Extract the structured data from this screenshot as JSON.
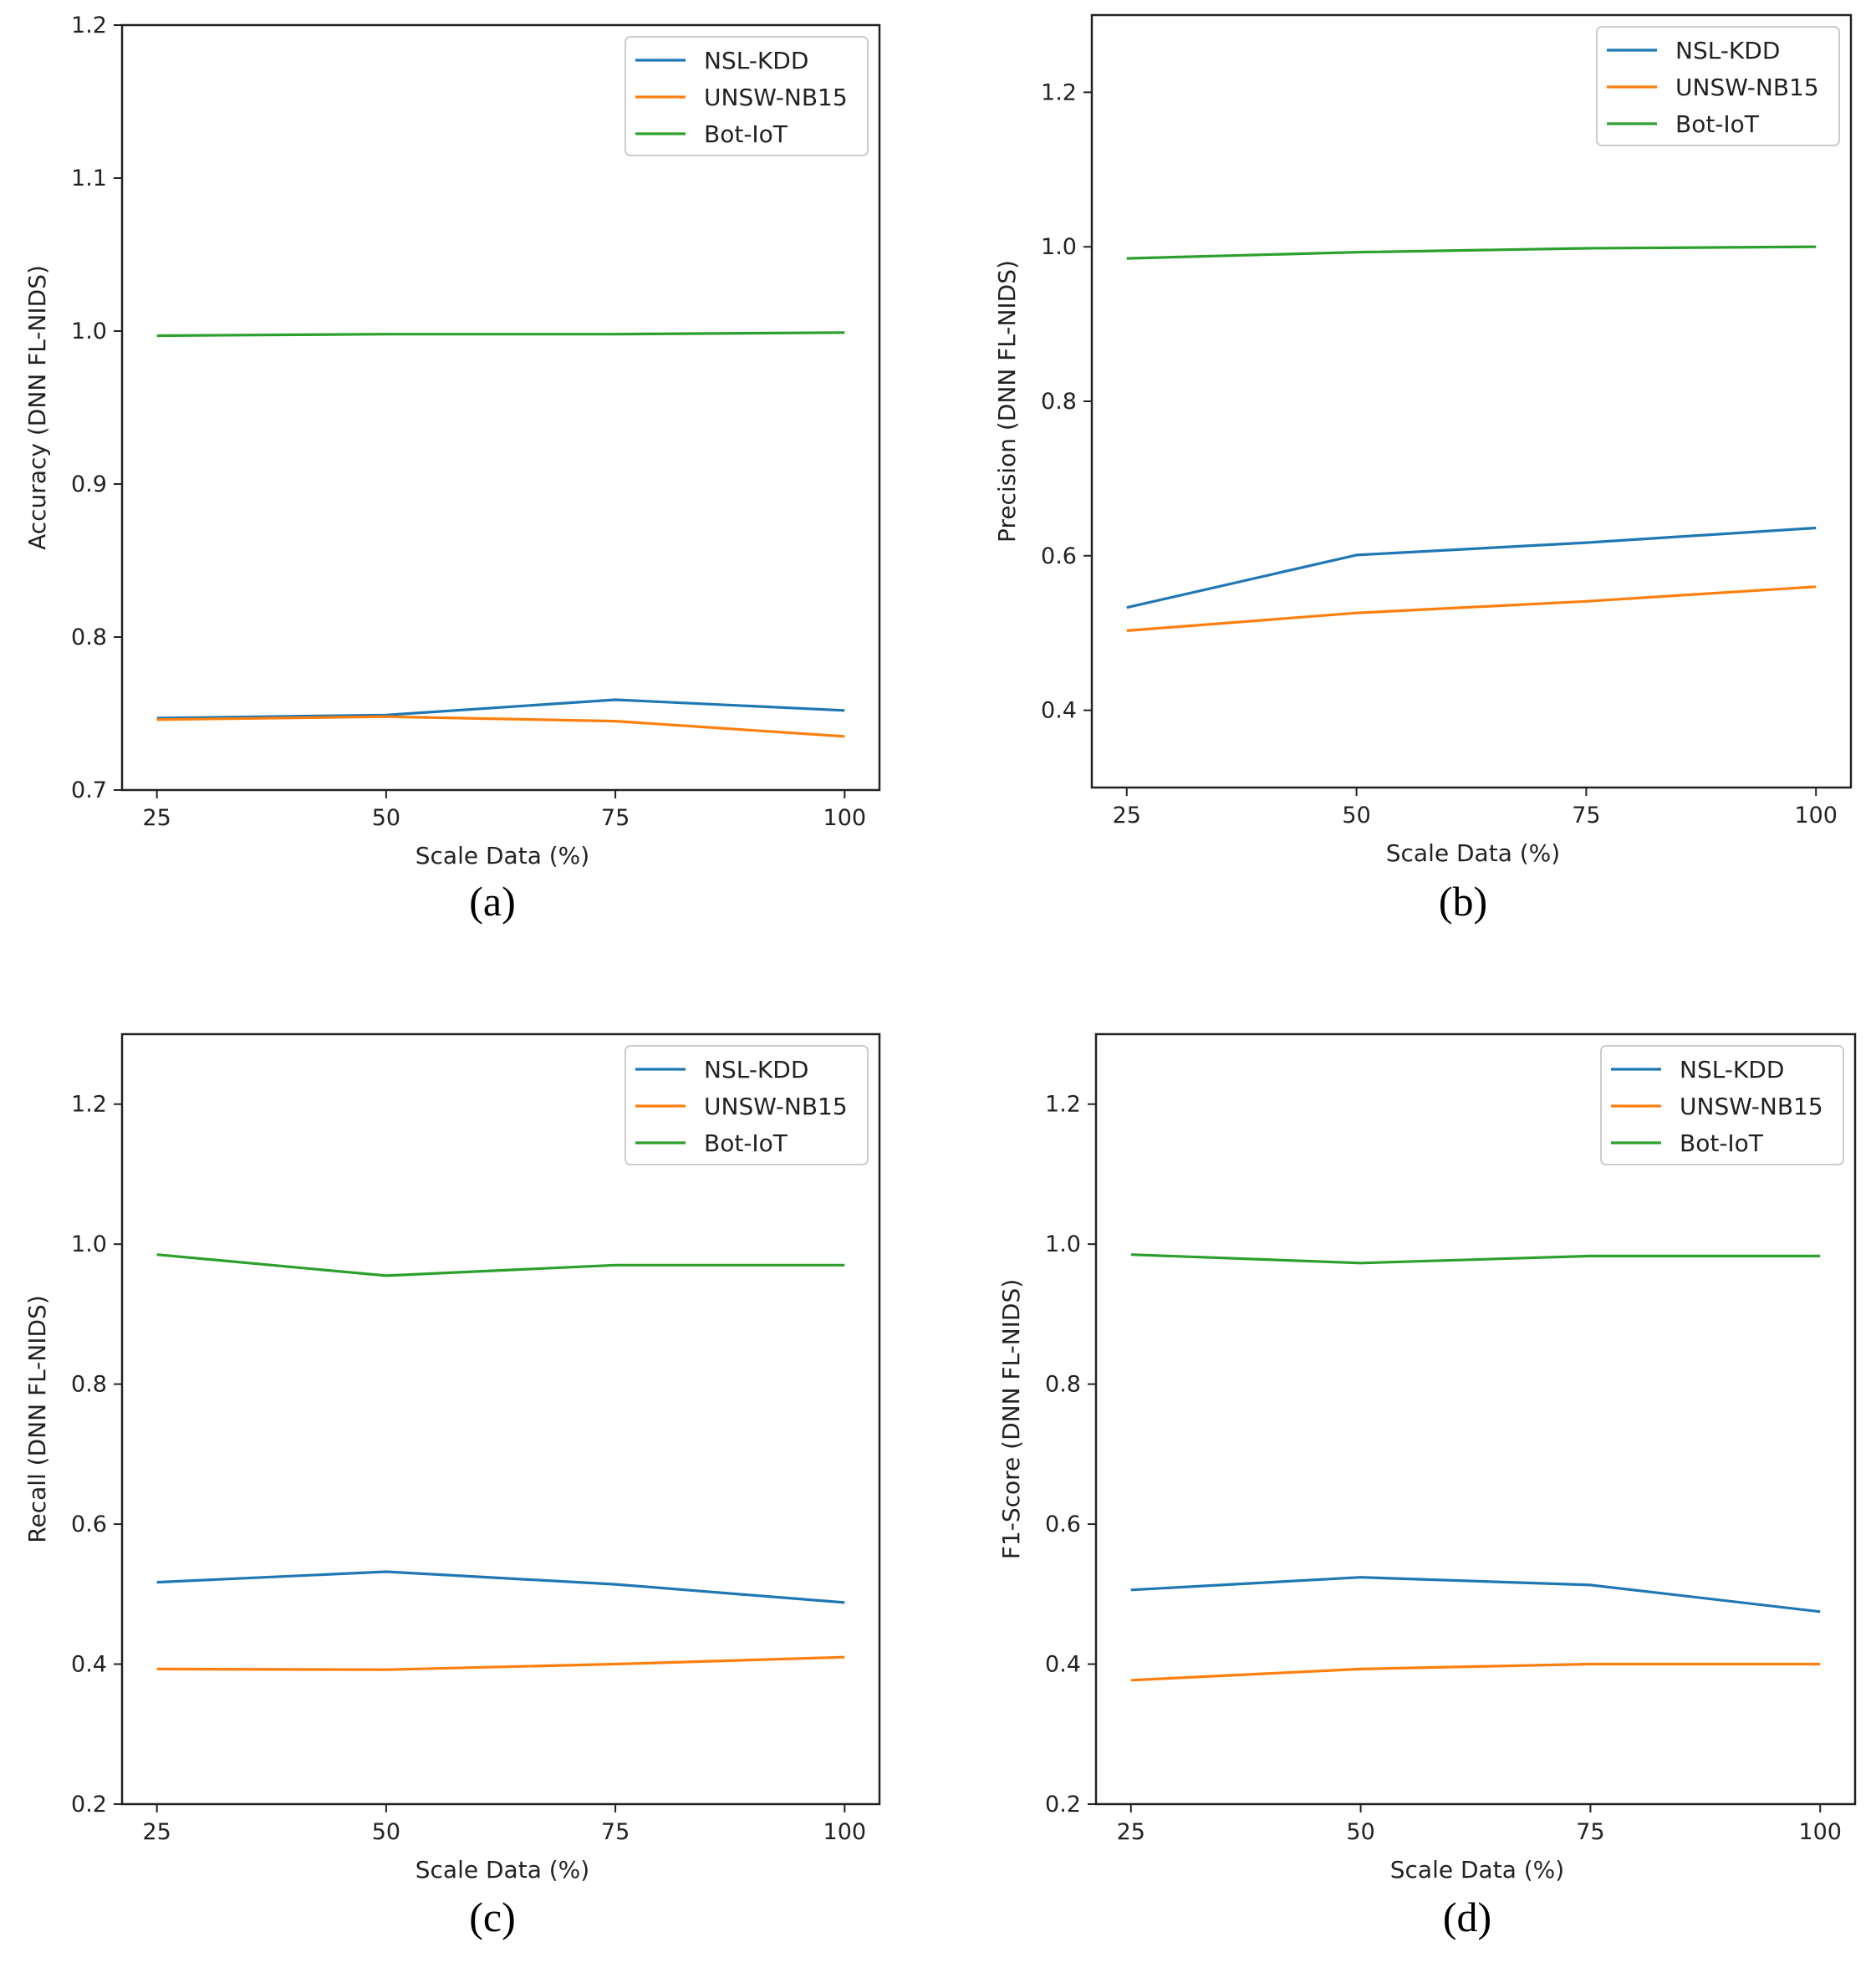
{
  "chart_data": [
    {
      "type": "line",
      "id": "a",
      "caption": "(a)",
      "xlabel": "Scale Data (%)",
      "ylabel": "Accuracy (DNN FL-NIDS)",
      "x": [
        25,
        50,
        75,
        100
      ],
      "xticks": [
        "25",
        "50",
        "75",
        "100"
      ],
      "xlim": [
        21.2,
        103.8
      ],
      "ylim": [
        0.7,
        1.2
      ],
      "yticks": [
        "0.7",
        "0.8",
        "0.9",
        "1.0",
        "1.1",
        "1.2"
      ],
      "legend_position": "top-right",
      "series": [
        {
          "name": "NSL-KDD",
          "color": "#1f77b4",
          "values": [
            0.747,
            0.749,
            0.759,
            0.752
          ]
        },
        {
          "name": "UNSW-NB15",
          "color": "#ff7f0e",
          "values": [
            0.746,
            0.748,
            0.745,
            0.735
          ]
        },
        {
          "name": "Bot-IoT",
          "color": "#2ca02c",
          "values": [
            0.997,
            0.998,
            0.998,
            0.999
          ]
        }
      ]
    },
    {
      "type": "line",
      "id": "b",
      "caption": "(b)",
      "xlabel": "Scale Data (%)",
      "ylabel": "Precision (DNN FL-NIDS)",
      "x": [
        25,
        50,
        75,
        100
      ],
      "xticks": [
        "25",
        "50",
        "75",
        "100"
      ],
      "xlim": [
        21.2,
        103.8
      ],
      "ylim": [
        0.3,
        1.3
      ],
      "yticks": [
        "0.4",
        "0.6",
        "0.8",
        "1.0",
        "1.2"
      ],
      "legend_position": "top-right",
      "series": [
        {
          "name": "NSL-KDD",
          "color": "#1f77b4",
          "values": [
            0.533,
            0.601,
            0.617,
            0.636
          ]
        },
        {
          "name": "UNSW-NB15",
          "color": "#ff7f0e",
          "values": [
            0.503,
            0.526,
            0.541,
            0.56
          ]
        },
        {
          "name": "Bot-IoT",
          "color": "#2ca02c",
          "values": [
            0.985,
            0.993,
            0.998,
            1.0
          ]
        }
      ]
    },
    {
      "type": "line",
      "id": "c",
      "caption": "(c)",
      "xlabel": "Scale Data (%)",
      "ylabel": "Recall (DNN FL-NIDS)",
      "x": [
        25,
        50,
        75,
        100
      ],
      "xticks": [
        "25",
        "50",
        "75",
        "100"
      ],
      "xlim": [
        21.2,
        103.8
      ],
      "ylim": [
        0.2,
        1.3
      ],
      "yticks": [
        "0.2",
        "0.4",
        "0.6",
        "0.8",
        "1.0",
        "1.2"
      ],
      "legend_position": "top-right",
      "series": [
        {
          "name": "NSL-KDD",
          "color": "#1f77b4",
          "values": [
            0.517,
            0.532,
            0.514,
            0.488
          ]
        },
        {
          "name": "UNSW-NB15",
          "color": "#ff7f0e",
          "values": [
            0.393,
            0.392,
            0.4,
            0.41
          ]
        },
        {
          "name": "Bot-IoT",
          "color": "#2ca02c",
          "values": [
            0.985,
            0.955,
            0.97,
            0.97
          ]
        }
      ]
    },
    {
      "type": "line",
      "id": "d",
      "caption": "(d)",
      "xlabel": "Scale Data (%)",
      "ylabel": "F1-Score (DNN FL-NIDS)",
      "x": [
        25,
        50,
        75,
        100
      ],
      "xticks": [
        "25",
        "50",
        "75",
        "100"
      ],
      "xlim": [
        21.2,
        103.8
      ],
      "ylim": [
        0.2,
        1.3
      ],
      "yticks": [
        "0.2",
        "0.4",
        "0.6",
        "0.8",
        "1.0",
        "1.2"
      ],
      "legend_position": "top-right",
      "series": [
        {
          "name": "NSL-KDD",
          "color": "#1f77b4",
          "values": [
            0.506,
            0.524,
            0.513,
            0.475
          ]
        },
        {
          "name": "UNSW-NB15",
          "color": "#ff7f0e",
          "values": [
            0.377,
            0.393,
            0.4,
            0.4
          ]
        },
        {
          "name": "Bot-IoT",
          "color": "#2ca02c",
          "values": [
            0.985,
            0.973,
            0.983,
            0.983
          ]
        }
      ]
    }
  ]
}
